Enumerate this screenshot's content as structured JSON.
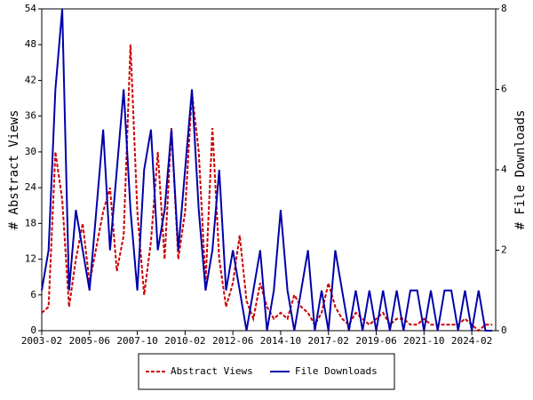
{
  "chart_data": {
    "type": "line",
    "x": [
      "2003-02",
      "2003-06",
      "2003-10",
      "2004-02",
      "2004-06",
      "2004-10",
      "2005-02",
      "2005-06",
      "2005-10",
      "2006-02",
      "2006-06",
      "2006-10",
      "2007-02",
      "2007-06",
      "2007-10",
      "2008-02",
      "2008-06",
      "2008-10",
      "2009-02",
      "2009-06",
      "2009-10",
      "2010-02",
      "2010-06",
      "2010-10",
      "2011-02",
      "2011-06",
      "2011-10",
      "2012-02",
      "2012-06",
      "2012-10",
      "2013-02",
      "2013-06",
      "2013-10",
      "2014-02",
      "2014-06",
      "2014-10",
      "2015-02",
      "2015-06",
      "2015-10",
      "2016-02",
      "2016-06",
      "2016-10",
      "2017-02",
      "2017-06",
      "2017-10",
      "2018-02",
      "2018-06",
      "2018-10",
      "2019-02",
      "2019-06",
      "2019-10",
      "2020-02",
      "2020-06",
      "2020-10",
      "2021-02",
      "2021-06",
      "2021-10",
      "2022-02",
      "2022-06",
      "2022-10",
      "2023-02",
      "2023-06",
      "2023-10",
      "2024-02",
      "2024-06",
      "2024-10",
      "2025-02"
    ],
    "series": [
      {
        "name": "Abstract Views",
        "color": "#cc0000",
        "axis": "y",
        "values": [
          3,
          4,
          30,
          22,
          4,
          12,
          18,
          8,
          14,
          20,
          24,
          10,
          16,
          48,
          20,
          6,
          15,
          30,
          12,
          34,
          12,
          20,
          40,
          30,
          8,
          34,
          12,
          4,
          8,
          16,
          5,
          2,
          8,
          4,
          2,
          3,
          2,
          6,
          4,
          3,
          1,
          3,
          8,
          4,
          2,
          1,
          3,
          2,
          1,
          2,
          3,
          1,
          2,
          2,
          1,
          1,
          2,
          1,
          1,
          1,
          1,
          1,
          2,
          1,
          0,
          1,
          1
        ]
      },
      {
        "name": "File Downloads",
        "color": "#0000aa",
        "axis": "y2",
        "values": [
          1,
          2,
          6,
          8,
          1,
          3,
          2,
          1,
          3,
          5,
          2,
          4,
          6,
          3,
          1,
          4,
          5,
          2,
          3,
          5,
          2,
          4,
          6,
          3,
          1,
          2,
          4,
          1,
          2,
          1,
          0,
          1,
          2,
          0,
          1,
          3,
          1,
          0,
          1,
          2,
          0,
          1,
          0,
          2,
          1,
          0,
          1,
          0,
          1,
          0,
          1,
          0,
          1,
          0,
          1,
          1,
          0,
          1,
          0,
          1,
          1,
          0,
          1,
          0,
          1,
          0,
          0
        ]
      }
    ],
    "xlim": [
      "2003-02",
      "2025-04"
    ],
    "xticks": [
      "2003-02",
      "2005-06",
      "2007-10",
      "2010-02",
      "2012-06",
      "2014-10",
      "2017-02",
      "2019-06",
      "2021-10",
      "2024-02"
    ],
    "ylim": [
      0,
      54
    ],
    "yticks": [
      0,
      6,
      12,
      18,
      24,
      30,
      36,
      42,
      48,
      54
    ],
    "y2lim": [
      0,
      8
    ],
    "y2ticks": [
      0,
      2,
      4,
      6,
      8
    ],
    "ylabel": "# Abstract Views",
    "y2label": "# File Downloads"
  }
}
